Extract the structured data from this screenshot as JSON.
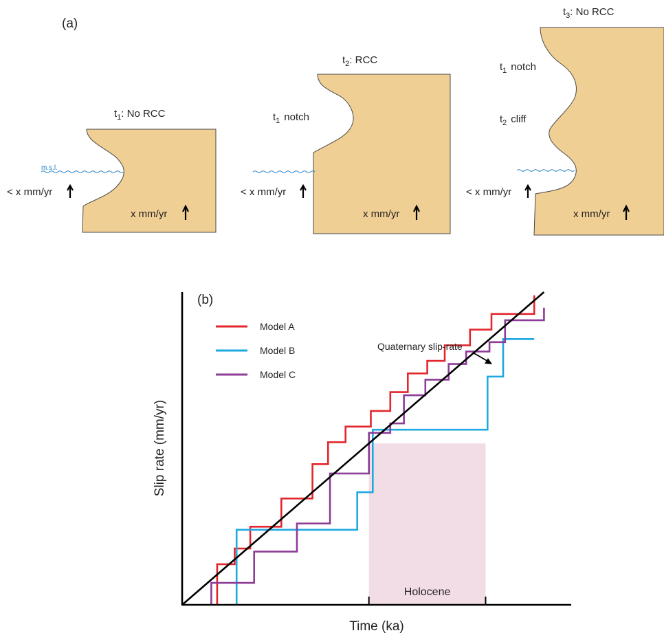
{
  "colors": {
    "rock": "#f0cf94",
    "sea": "#1f7fc6",
    "holocene_shading": "#f2dde6",
    "model_a": "#e2262b",
    "model_b": "#1ea9e1",
    "model_c": "#8d3c97",
    "reference_line": "#000000"
  },
  "panel_a": {
    "label": "(a)",
    "msl_label": "m.s.l.",
    "stages": [
      {
        "time": "t",
        "time_sub": "1",
        "state": ": No RCC",
        "rate_left": "< x mm/yr",
        "rate_right": "x mm/yr"
      },
      {
        "time": "t",
        "time_sub": "2",
        "state": ": RCC",
        "notch_label": "t",
        "notch_sub": "1",
        "notch_word": "notch",
        "rate_left": "< x mm/yr",
        "rate_right": "x mm/yr"
      },
      {
        "time": "t",
        "time_sub": "3",
        "state": ": No RCC",
        "notch_label": "t",
        "notch_sub": "1",
        "notch_word": "notch",
        "cliff_label": "t",
        "cliff_sub": "2",
        "cliff_word": "cliff",
        "rate_left": "< x mm/yr",
        "rate_right": "x mm/yr"
      }
    ]
  },
  "panel_b": {
    "label": "(b)",
    "xlabel": "Time (ka)",
    "ylabel": "Slip rate (mm/yr)",
    "reference_label": "Quaternary slip-rate",
    "shaded_label": "Holocene",
    "legend": [
      {
        "name": "Model A",
        "color_key": "model_a"
      },
      {
        "name": "Model B",
        "color_key": "model_b"
      },
      {
        "name": "Model C",
        "color_key": "model_c"
      }
    ]
  },
  "chart_data": {
    "type": "line",
    "title": "",
    "xlabel": "Time (ka)",
    "ylabel": "Slip rate (mm/yr)",
    "xlim": [
      0,
      100
    ],
    "ylim": [
      0,
      100
    ],
    "ticks": "none",
    "grid": false,
    "legend_position": "top-left",
    "shaded_region": {
      "label": "Holocene",
      "x": [
        48,
        78
      ]
    },
    "reference_line": {
      "name": "Quaternary slip-rate",
      "x": [
        0,
        93
      ],
      "y": [
        0,
        100
      ]
    },
    "series": [
      {
        "name": "Model A",
        "color_key": "model_a",
        "x": [
          9,
          9,
          13.5,
          13.5,
          17.5,
          17.5,
          25.5,
          25.5,
          33.5,
          33.5,
          37.5,
          37.5,
          42,
          42,
          48.5,
          48.5,
          53.5,
          53.5,
          58,
          58,
          63,
          63,
          67.5,
          67.5,
          74,
          74,
          79.5,
          79.5,
          90.5,
          90.5
        ],
        "y": [
          0,
          13,
          13,
          18,
          18,
          25,
          25,
          34,
          34,
          45,
          45,
          52,
          52,
          57,
          57,
          62,
          62,
          68,
          68,
          74,
          74,
          78,
          78,
          83,
          83,
          88,
          88,
          93,
          93,
          99
        ]
      },
      {
        "name": "Model B",
        "color_key": "model_b",
        "x": [
          14,
          14,
          45,
          45,
          49,
          49,
          78.5,
          78.5,
          82.5,
          82.5,
          90.5
        ],
        "y": [
          0,
          24,
          24,
          36,
          36,
          56,
          56,
          73,
          73,
          85,
          85
        ]
      },
      {
        "name": "Model C",
        "color_key": "model_c",
        "x": [
          7.5,
          7.5,
          18.5,
          18.5,
          29.5,
          29.5,
          38,
          38,
          48,
          48,
          53.5,
          53.5,
          57,
          57,
          62.5,
          62.5,
          68.5,
          68.5,
          73,
          73,
          79,
          79,
          83,
          83,
          93,
          93
        ],
        "y": [
          0,
          7,
          7,
          17,
          17,
          26,
          26,
          42,
          42,
          55,
          55,
          58,
          58,
          67,
          67,
          72,
          72,
          77,
          77,
          81,
          81,
          84,
          84,
          91,
          91,
          95
        ]
      }
    ]
  }
}
